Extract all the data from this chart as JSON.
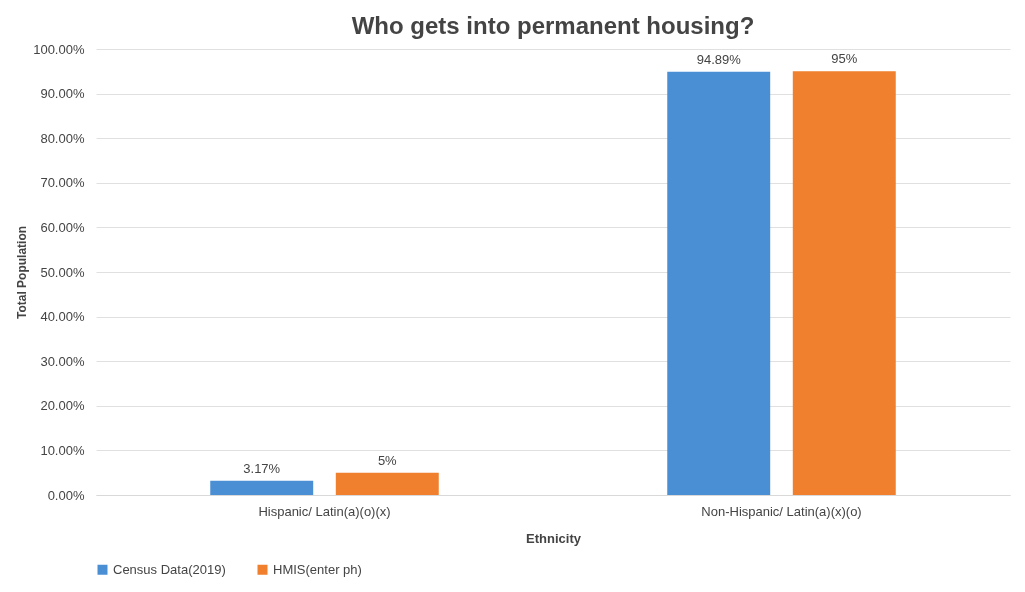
{
  "chart_data": {
    "type": "bar",
    "title": "Who gets into permanent housing?",
    "xlabel": "Ethnicity",
    "ylabel": "Total Population",
    "categories": [
      "Hispanic/ Latin(a)(o)(x)",
      "Non-Hispanic/ Latin(a)(x)(o)"
    ],
    "series": [
      {
        "name": "Census Data(2019)",
        "color": "#4a8fd4",
        "values": [
          3.17,
          94.89
        ],
        "value_labels": [
          "3.17%",
          "94.89%"
        ]
      },
      {
        "name": "HMIS(enter ph)",
        "color": "#f07f2e",
        "values": [
          5,
          95
        ],
        "value_labels": [
          "5%",
          "95%"
        ]
      }
    ],
    "ylim": [
      0,
      100
    ],
    "yticks": [
      {
        "value": 0,
        "label": "0.00%"
      },
      {
        "value": 10,
        "label": "10.00%"
      },
      {
        "value": 20,
        "label": "20.00%"
      },
      {
        "value": 30,
        "label": "30.00%"
      },
      {
        "value": 40,
        "label": "40.00%"
      },
      {
        "value": 50,
        "label": "50.00%"
      },
      {
        "value": 60,
        "label": "60.00%"
      },
      {
        "value": 70,
        "label": "70.00%"
      },
      {
        "value": 80,
        "label": "80.00%"
      },
      {
        "value": 90,
        "label": "90.00%"
      },
      {
        "value": 100,
        "label": "100.00%"
      }
    ],
    "grid": "y",
    "legend": "bottom"
  }
}
